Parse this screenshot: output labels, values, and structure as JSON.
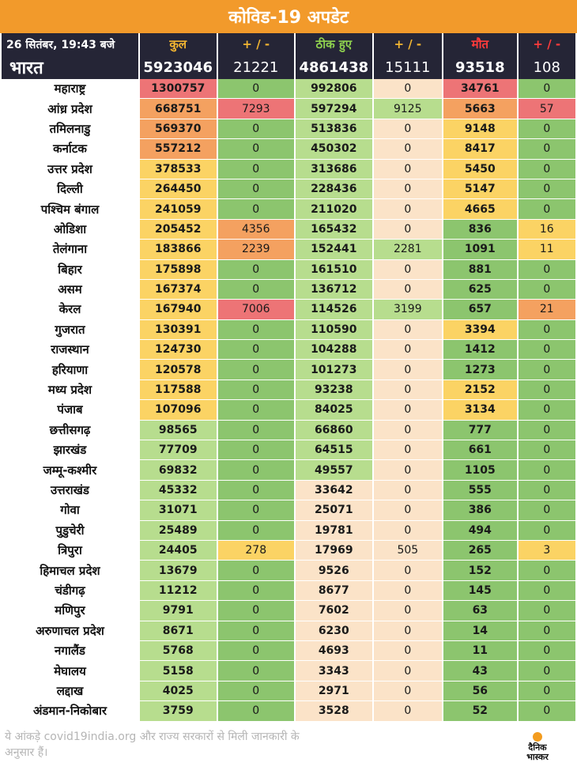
{
  "title": "कोविड-19 अपडेट",
  "header": {
    "date": "26 सितंबर, 19:43 बजे",
    "total": "कुल",
    "plusminus": "+ / -",
    "recovered": "ठीक हुए",
    "deaths": "मौत"
  },
  "india": {
    "name": "भारत",
    "total": "5923046",
    "total_delta": "21221",
    "recovered": "4861438",
    "recovered_delta": "15111",
    "deaths": "93518",
    "deaths_delta": "108"
  },
  "colors": {
    "green": "#8cc56e",
    "light_green": "#b7dd8e",
    "peach": "#fbe3c8",
    "yellow": "#fbd364",
    "orange": "#f4a160",
    "red": "#ed7476",
    "header_bg": "#252536",
    "title_bg": "#f29a2b"
  },
  "chart_data": {
    "type": "table",
    "columns": [
      "",
      "कुल",
      "+ / -",
      "ठीक हुए",
      "+ / -",
      "मौत",
      "+ / -"
    ],
    "rows": [
      [
        "महाराष्ट्र",
        1300757,
        0,
        992806,
        0,
        34761,
        0
      ],
      [
        "आंध्र प्रदेश",
        668751,
        7293,
        597294,
        9125,
        5663,
        57
      ],
      [
        "तमिलनाडु",
        569370,
        0,
        513836,
        0,
        9148,
        0
      ],
      [
        "कर्नाटक",
        557212,
        0,
        450302,
        0,
        8417,
        0
      ],
      [
        "उत्तर प्रदेश",
        378533,
        0,
        313686,
        0,
        5450,
        0
      ],
      [
        "दिल्ली",
        264450,
        0,
        228436,
        0,
        5147,
        0
      ],
      [
        "पश्चिम बंगाल",
        241059,
        0,
        211020,
        0,
        4665,
        0
      ],
      [
        "ओडिशा",
        205452,
        4356,
        165432,
        0,
        836,
        16
      ],
      [
        "तेलंगाना",
        183866,
        2239,
        152441,
        2281,
        1091,
        11
      ],
      [
        "बिहार",
        175898,
        0,
        161510,
        0,
        881,
        0
      ],
      [
        "असम",
        167374,
        0,
        136712,
        0,
        625,
        0
      ],
      [
        "केरल",
        167940,
        7006,
        114526,
        3199,
        657,
        21
      ],
      [
        "गुजरात",
        130391,
        0,
        110590,
        0,
        3394,
        0
      ],
      [
        "राजस्थान",
        124730,
        0,
        104288,
        0,
        1412,
        0
      ],
      [
        "हरियाणा",
        120578,
        0,
        101273,
        0,
        1273,
        0
      ],
      [
        "मध्य प्रदेश",
        117588,
        0,
        93238,
        0,
        2152,
        0
      ],
      [
        "पंजाब",
        107096,
        0,
        84025,
        0,
        3134,
        0
      ],
      [
        "छत्तीसगढ़",
        98565,
        0,
        66860,
        0,
        777,
        0
      ],
      [
        "झारखंड",
        77709,
        0,
        64515,
        0,
        661,
        0
      ],
      [
        "जम्मू-कश्मीर",
        69832,
        0,
        49557,
        0,
        1105,
        0
      ],
      [
        "उत्तराखंड",
        45332,
        0,
        33642,
        0,
        555,
        0
      ],
      [
        "गोवा",
        31071,
        0,
        25071,
        0,
        386,
        0
      ],
      [
        "पुडुचेरी",
        25489,
        0,
        19781,
        0,
        494,
        0
      ],
      [
        "त्रिपुरा",
        24405,
        278,
        17969,
        505,
        265,
        3
      ],
      [
        "हिमाचल प्रदेश",
        13679,
        0,
        9526,
        0,
        152,
        0
      ],
      [
        "चंडीगढ़",
        11212,
        0,
        8677,
        0,
        145,
        0
      ],
      [
        "मणिपुर",
        9791,
        0,
        7602,
        0,
        63,
        0
      ],
      [
        "अरुणाचल प्रदेश",
        8671,
        0,
        6230,
        0,
        14,
        0
      ],
      [
        "नगालैंड",
        5768,
        0,
        4693,
        0,
        11,
        0
      ],
      [
        "मेघालय",
        5158,
        0,
        3343,
        0,
        43,
        0
      ],
      [
        "लद्दाख",
        4025,
        0,
        2971,
        0,
        56,
        0
      ],
      [
        "अंडमान-निकोबार",
        3759,
        0,
        3528,
        0,
        52,
        0
      ]
    ],
    "cell_colors": [
      [
        "red",
        "green",
        "light_green",
        "peach",
        "red",
        "green"
      ],
      [
        "orange",
        "red",
        "light_green",
        "light_green",
        "orange",
        "red"
      ],
      [
        "orange",
        "green",
        "light_green",
        "peach",
        "yellow",
        "green"
      ],
      [
        "orange",
        "green",
        "light_green",
        "peach",
        "yellow",
        "green"
      ],
      [
        "yellow",
        "green",
        "light_green",
        "peach",
        "yellow",
        "green"
      ],
      [
        "yellow",
        "green",
        "light_green",
        "peach",
        "yellow",
        "green"
      ],
      [
        "yellow",
        "green",
        "light_green",
        "peach",
        "yellow",
        "green"
      ],
      [
        "yellow",
        "orange",
        "light_green",
        "peach",
        "green",
        "yellow"
      ],
      [
        "yellow",
        "orange",
        "light_green",
        "light_green",
        "green",
        "yellow"
      ],
      [
        "yellow",
        "green",
        "light_green",
        "peach",
        "green",
        "green"
      ],
      [
        "yellow",
        "green",
        "light_green",
        "peach",
        "green",
        "green"
      ],
      [
        "yellow",
        "red",
        "light_green",
        "light_green",
        "green",
        "orange"
      ],
      [
        "yellow",
        "green",
        "light_green",
        "peach",
        "yellow",
        "green"
      ],
      [
        "yellow",
        "green",
        "light_green",
        "peach",
        "green",
        "green"
      ],
      [
        "yellow",
        "green",
        "light_green",
        "peach",
        "green",
        "green"
      ],
      [
        "yellow",
        "green",
        "light_green",
        "peach",
        "yellow",
        "green"
      ],
      [
        "yellow",
        "green",
        "light_green",
        "peach",
        "yellow",
        "green"
      ],
      [
        "light_green",
        "green",
        "light_green",
        "peach",
        "green",
        "green"
      ],
      [
        "light_green",
        "green",
        "light_green",
        "peach",
        "green",
        "green"
      ],
      [
        "light_green",
        "green",
        "light_green",
        "peach",
        "green",
        "green"
      ],
      [
        "light_green",
        "green",
        "peach",
        "peach",
        "green",
        "green"
      ],
      [
        "light_green",
        "green",
        "peach",
        "peach",
        "green",
        "green"
      ],
      [
        "light_green",
        "green",
        "peach",
        "peach",
        "green",
        "green"
      ],
      [
        "light_green",
        "yellow",
        "peach",
        "peach",
        "green",
        "yellow"
      ],
      [
        "light_green",
        "green",
        "peach",
        "peach",
        "green",
        "green"
      ],
      [
        "light_green",
        "green",
        "peach",
        "peach",
        "green",
        "green"
      ],
      [
        "light_green",
        "green",
        "peach",
        "peach",
        "green",
        "green"
      ],
      [
        "light_green",
        "green",
        "peach",
        "peach",
        "green",
        "green"
      ],
      [
        "light_green",
        "green",
        "peach",
        "peach",
        "green",
        "green"
      ],
      [
        "light_green",
        "green",
        "peach",
        "peach",
        "green",
        "green"
      ],
      [
        "light_green",
        "green",
        "peach",
        "peach",
        "green",
        "green"
      ],
      [
        "light_green",
        "green",
        "peach",
        "peach",
        "green",
        "green"
      ]
    ]
  },
  "footer": {
    "note": "ये आंकड़े covid19india.org और राज्य सरकारों से मिली जानकारी के अनुसार हैं।",
    "logo_line1": "दैनिक",
    "logo_line2": "भास्कर"
  }
}
